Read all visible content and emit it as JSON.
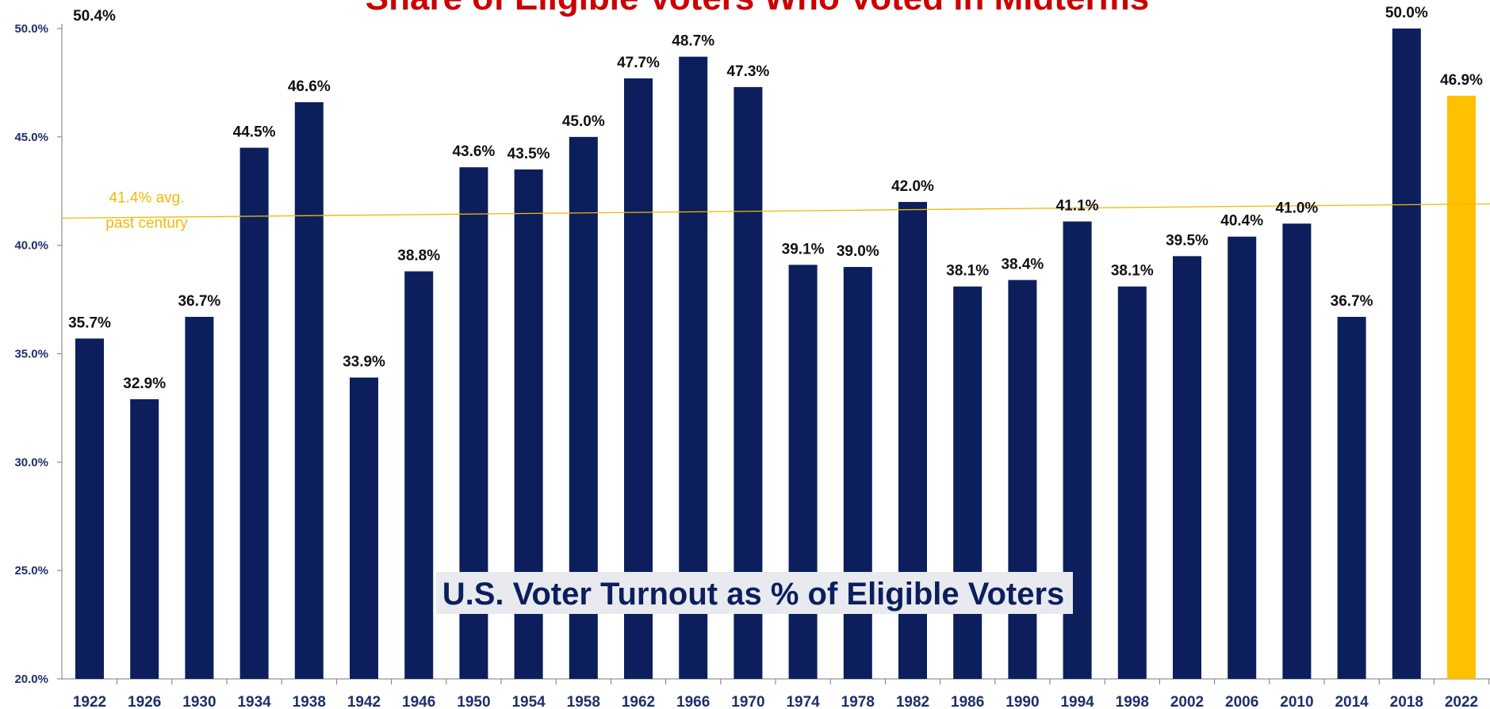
{
  "chart_data": {
    "type": "bar",
    "title": "Share of Eligible Voters Who Voted in Midterms",
    "overlay_label": "U.S. Voter Turnout as % of Eligible Voters",
    "categories": [
      "1922",
      "1926",
      "1930",
      "1934",
      "1938",
      "1942",
      "1946",
      "1950",
      "1954",
      "1958",
      "1962",
      "1966",
      "1970",
      "1974",
      "1978",
      "1982",
      "1986",
      "1990",
      "1994",
      "1998",
      "2002",
      "2006",
      "2010",
      "2014",
      "2018",
      "2022"
    ],
    "values": [
      35.7,
      32.9,
      36.7,
      44.5,
      46.6,
      33.9,
      38.8,
      43.6,
      43.5,
      45.0,
      47.7,
      48.7,
      47.3,
      39.1,
      39.0,
      42.0,
      38.1,
      38.4,
      41.1,
      38.1,
      39.5,
      40.4,
      41.0,
      36.7,
      50.0,
      46.9
    ],
    "data_labels": [
      "35.7%",
      "32.9%",
      "36.7%",
      "44.5%",
      "46.6%",
      "33.9%",
      "38.8%",
      "43.6%",
      "43.5%",
      "45.0%",
      "47.7%",
      "48.7%",
      "47.3%",
      "39.1%",
      "39.0%",
      "42.0%",
      "38.1%",
      "38.4%",
      "41.1%",
      "38.1%",
      "39.5%",
      "40.4%",
      "41.0%",
      "36.7%",
      "50.0%",
      "46.9%"
    ],
    "extra_label": "50.4%",
    "ylim": [
      20,
      50
    ],
    "yticks": [
      "20.0%",
      "25.0%",
      "30.0%",
      "35.0%",
      "40.0%",
      "45.0%",
      "50.0%"
    ],
    "ytick_values": [
      20,
      25,
      30,
      35,
      40,
      45,
      50
    ],
    "average": {
      "value": 41.4,
      "label_line1": "41.4% avg.",
      "label_line2": "past century"
    },
    "colors": {
      "bar": "#0c1f5c",
      "highlight": "#ffc000",
      "highlight_index": 25,
      "average_line": "#f2b705",
      "title": "#cc0000"
    },
    "grid": false,
    "legend": "none"
  }
}
